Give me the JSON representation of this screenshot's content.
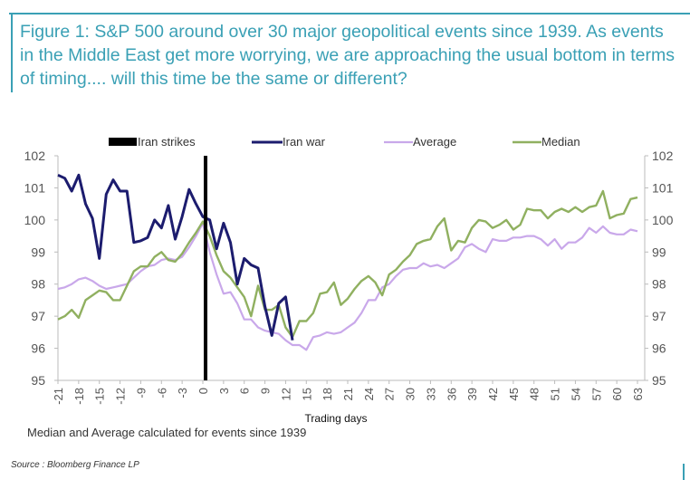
{
  "title": "Figure 1: S&P 500 around over 30 major geopolitical events since 1939. As events in the Middle East get more worrying, we are approaching the usual bottom in terms of timing.... will this time be the same or different?",
  "note": "Median and Average calculated for events since 1939",
  "source": "Source : Bloomberg Finance LP",
  "colors": {
    "title": "#3aa0b5",
    "iran_strikes": "#000000",
    "iran_war": "#1c1c6e",
    "average": "#c9a8ea",
    "median": "#90b060"
  },
  "chart_data": {
    "type": "line",
    "xlabel": "Trading days",
    "ylabel": "",
    "xlim": [
      -21,
      63
    ],
    "ylim": [
      95,
      102
    ],
    "yticks": [
      95,
      96,
      97,
      98,
      99,
      100,
      101,
      102
    ],
    "xticks": [
      -21,
      -18,
      -15,
      -12,
      -9,
      -6,
      -3,
      0,
      3,
      6,
      9,
      12,
      15,
      18,
      21,
      24,
      27,
      30,
      33,
      36,
      39,
      42,
      45,
      48,
      51,
      54,
      57,
      60,
      63
    ],
    "grid": false,
    "legend_position": "top",
    "secondary_y_axis": true,
    "marker": {
      "name": "Iran strikes",
      "x": 0
    },
    "series": [
      {
        "name": "Iran war",
        "x_start": -21,
        "values": [
          101.4,
          101.3,
          100.9,
          101.4,
          100.5,
          100.05,
          98.8,
          100.8,
          101.25,
          100.9,
          100.9,
          99.3,
          99.35,
          99.45,
          100.0,
          99.75,
          100.45,
          99.4,
          100.1,
          100.95,
          100.5,
          100.1,
          100.0,
          99.1,
          99.9,
          99.3,
          98.0,
          98.8,
          98.6,
          98.5,
          97.3,
          96.4,
          97.4,
          97.6,
          96.25
        ]
      },
      {
        "name": "Average",
        "x_start": -21,
        "values": [
          97.85,
          97.9,
          98.0,
          98.15,
          98.2,
          98.1,
          97.95,
          97.85,
          97.9,
          97.95,
          98.0,
          98.2,
          98.4,
          98.55,
          98.6,
          98.75,
          98.8,
          98.75,
          98.85,
          99.15,
          99.5,
          99.9,
          99.0,
          98.3,
          97.7,
          97.75,
          97.4,
          96.9,
          96.9,
          96.65,
          96.55,
          96.5,
          96.45,
          96.25,
          96.1,
          96.1,
          95.95,
          96.35,
          96.4,
          96.5,
          96.45,
          96.5,
          96.65,
          96.8,
          97.1,
          97.5,
          97.5,
          97.9,
          98.0,
          98.25,
          98.45,
          98.5,
          98.5,
          98.65,
          98.55,
          98.6,
          98.5,
          98.65,
          98.8,
          99.15,
          99.25,
          99.1,
          99.0,
          99.4,
          99.35,
          99.35,
          99.45,
          99.45,
          99.5,
          99.5,
          99.4,
          99.2,
          99.4,
          99.1,
          99.3,
          99.3,
          99.45,
          99.75,
          99.6,
          99.8,
          99.6,
          99.55,
          99.55,
          99.7,
          99.65
        ]
      },
      {
        "name": "Median",
        "x_start": -21,
        "values": [
          96.9,
          97.0,
          97.2,
          96.95,
          97.5,
          97.65,
          97.8,
          97.75,
          97.5,
          97.5,
          97.95,
          98.4,
          98.55,
          98.55,
          98.85,
          99.0,
          98.75,
          98.7,
          98.95,
          99.3,
          99.6,
          99.95,
          99.5,
          98.9,
          98.4,
          98.2,
          97.9,
          97.6,
          97.0,
          97.95,
          97.2,
          97.2,
          97.35,
          96.65,
          96.35,
          96.85,
          96.85,
          97.1,
          97.7,
          97.75,
          98.05,
          97.35,
          97.55,
          97.85,
          98.1,
          98.25,
          98.05,
          97.65,
          98.3,
          98.45,
          98.7,
          98.9,
          99.25,
          99.35,
          99.4,
          99.8,
          100.05,
          99.05,
          99.35,
          99.3,
          99.75,
          100.0,
          99.95,
          99.75,
          99.85,
          100.0,
          99.7,
          99.85,
          100.35,
          100.3,
          100.3,
          100.05,
          100.25,
          100.35,
          100.25,
          100.4,
          100.25,
          100.4,
          100.45,
          100.9,
          100.05,
          100.15,
          100.2,
          100.65,
          100.7
        ]
      }
    ]
  }
}
